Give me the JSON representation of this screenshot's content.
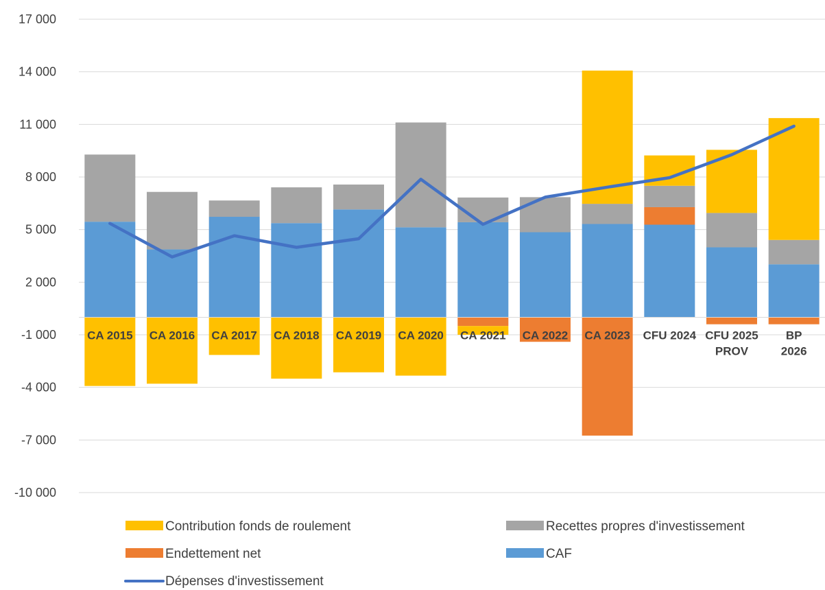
{
  "chart_data": {
    "type": "bar",
    "stacked": true,
    "title": "",
    "xlabel": "",
    "ylabel": "",
    "ylim": [
      -10000,
      17000
    ],
    "yticks": [
      17000,
      14000,
      11000,
      8000,
      5000,
      2000,
      -1000,
      -4000,
      -7000,
      -10000
    ],
    "ytick_labels": [
      "17 000",
      "14 000",
      "11 000",
      "8 000",
      "5 000",
      "2 000",
      "-1 000",
      "-4 000",
      "-7 000",
      "-10 000"
    ],
    "grid": true,
    "legend_position": "bottom",
    "categories": [
      [
        "CA 2015"
      ],
      [
        "CA 2016"
      ],
      [
        "CA 2017"
      ],
      [
        "CA 2018"
      ],
      [
        "CA 2019"
      ],
      [
        "CA 2020"
      ],
      [
        "CA 2021"
      ],
      [
        "CA 2022"
      ],
      [
        "CA 2023"
      ],
      [
        "CFU 2024"
      ],
      [
        "CFU 2025",
        "PROV"
      ],
      [
        "BP",
        "2026"
      ]
    ],
    "series": [
      {
        "name": "CAF",
        "kind": "bar",
        "color": "#5B9BD5",
        "values": [
          5450,
          3870,
          5730,
          5370,
          6150,
          5130,
          5420,
          4850,
          5320,
          5280,
          3990,
          3020
        ]
      },
      {
        "name": "Endettement net",
        "kind": "bar",
        "color": "#ED7D31",
        "values": [
          0,
          0,
          0,
          0,
          0,
          0,
          -500,
          -1400,
          -6750,
          1000,
          -400,
          -400
        ]
      },
      {
        "name": "Recettes propres d'investissement",
        "kind": "bar",
        "color": "#A5A5A5",
        "values": [
          3830,
          3280,
          930,
          2040,
          1420,
          5980,
          1410,
          2000,
          1150,
          1220,
          1960,
          1390
        ]
      },
      {
        "name": "Contribution fonds de roulement",
        "kind": "bar",
        "color": "#FFC000",
        "values": [
          -3920,
          -3790,
          -2150,
          -3500,
          -3140,
          -3330,
          -500,
          0,
          7600,
          1730,
          3600,
          6950
        ]
      },
      {
        "name": "Dépenses d'investissement",
        "kind": "line",
        "color": "#4472C4",
        "values": [
          5350,
          3440,
          4650,
          3990,
          4480,
          7870,
          5300,
          6850,
          7420,
          7960,
          9270,
          10900
        ]
      }
    ],
    "legend": [
      {
        "label": "Contribution fonds de roulement",
        "color": "#FFC000",
        "marker": "rect"
      },
      {
        "label": "Recettes propres d'investissement",
        "color": "#A5A5A5",
        "marker": "rect"
      },
      {
        "label": "Endettement net",
        "color": "#ED7D31",
        "marker": "rect"
      },
      {
        "label": "CAF",
        "color": "#5B9BD5",
        "marker": "rect"
      },
      {
        "label": "Dépenses d'investissement",
        "color": "#4472C4",
        "marker": "line"
      }
    ]
  }
}
